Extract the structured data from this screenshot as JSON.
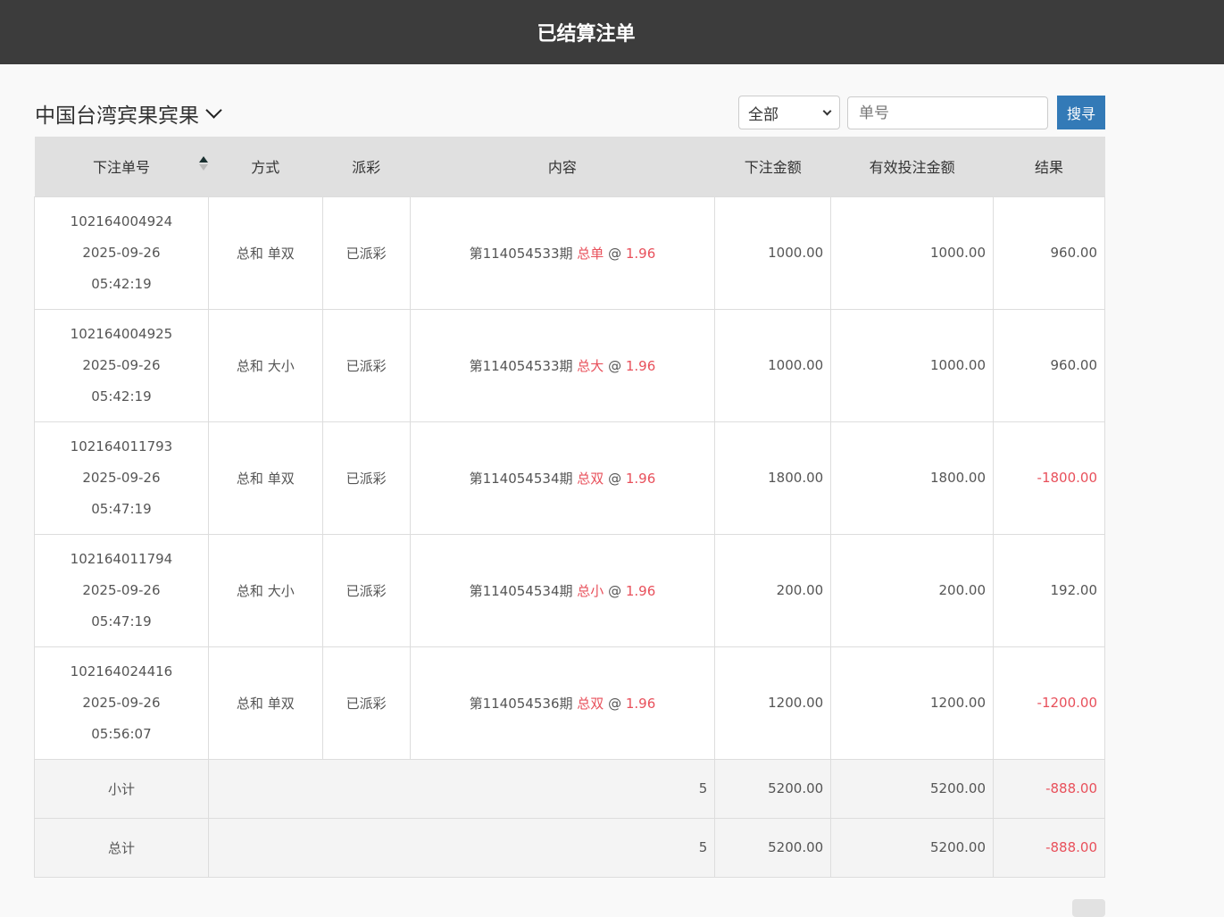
{
  "header": {
    "title": "已结算注单"
  },
  "toolbar": {
    "game": "中国台湾宾果宾果",
    "filter": "全部",
    "search_placeholder": "单号",
    "search_label": "搜寻"
  },
  "table": {
    "columns": [
      "下注单号",
      "方式",
      "派彩",
      "内容",
      "下注金额",
      "有效投注金额",
      "结果"
    ],
    "rows": [
      {
        "id": "102164004924",
        "date": "2025-09-26",
        "time": "05:42:19",
        "method": "总和 单双",
        "status": "已派彩",
        "period": "第114054533期",
        "pick": "总单",
        "at": "@",
        "odds": "1.96",
        "amount": "1000.00",
        "valid": "1000.00",
        "result": "960.00",
        "neg": false
      },
      {
        "id": "102164004925",
        "date": "2025-09-26",
        "time": "05:42:19",
        "method": "总和 大小",
        "status": "已派彩",
        "period": "第114054533期",
        "pick": "总大",
        "at": "@",
        "odds": "1.96",
        "amount": "1000.00",
        "valid": "1000.00",
        "result": "960.00",
        "neg": false
      },
      {
        "id": "102164011793",
        "date": "2025-09-26",
        "time": "05:47:19",
        "method": "总和 单双",
        "status": "已派彩",
        "period": "第114054534期",
        "pick": "总双",
        "at": "@",
        "odds": "1.96",
        "amount": "1800.00",
        "valid": "1800.00",
        "result": "-1800.00",
        "neg": true
      },
      {
        "id": "102164011794",
        "date": "2025-09-26",
        "time": "05:47:19",
        "method": "总和 大小",
        "status": "已派彩",
        "period": "第114054534期",
        "pick": "总小",
        "at": "@",
        "odds": "1.96",
        "amount": "200.00",
        "valid": "200.00",
        "result": "192.00",
        "neg": false
      },
      {
        "id": "102164024416",
        "date": "2025-09-26",
        "time": "05:56:07",
        "method": "总和 单双",
        "status": "已派彩",
        "period": "第114054536期",
        "pick": "总双",
        "at": "@",
        "odds": "1.96",
        "amount": "1200.00",
        "valid": "1200.00",
        "result": "-1200.00",
        "neg": true
      }
    ],
    "subtotal": {
      "label": "小计",
      "count": "5",
      "amount": "5200.00",
      "valid": "5200.00",
      "result": "-888.00"
    },
    "total": {
      "label": "总计",
      "count": "5",
      "amount": "5200.00",
      "valid": "5200.00",
      "result": "-888.00"
    }
  },
  "colors": {
    "accent": "#337ab7",
    "negative": "#e8505b",
    "topbar": "#3c3c3c"
  }
}
